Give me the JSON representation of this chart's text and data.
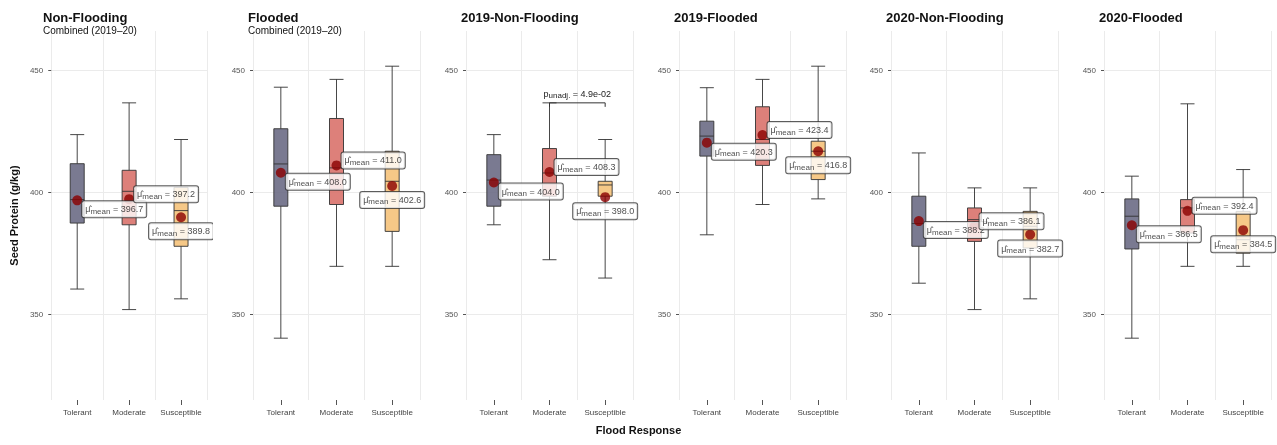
{
  "chart_data": [
    {
      "type": "box",
      "title": "Non-Flooding",
      "subtitle": "Combined (2019–20)",
      "ylabel": "Seed Protein (g/kg)",
      "categories": [
        "Tolerant",
        "Moderate",
        "Susceptible"
      ],
      "colors": [
        "#6b6b85",
        "#d9726b",
        "#f5c27a"
      ],
      "ylim": [
        315,
        466
      ],
      "yticks": [
        350,
        400,
        450
      ],
      "grid": true,
      "boxes": [
        {
          "low": 360.4,
          "q1": 387.4,
          "median": 397,
          "q3": 411.7,
          "high": 423.6,
          "mean": 396.7
        },
        {
          "low": 352,
          "q1": 386.7,
          "median": 400.4,
          "q3": 409,
          "high": 436.6,
          "mean": 397.2
        },
        {
          "low": 356.4,
          "q1": 377.9,
          "median": 392.5,
          "q3": 402,
          "high": 421.6,
          "mean": 389.8
        }
      ],
      "annotations": [
        "μ̂$_{mean}$ = 396.7",
        "μ̂$_{mean}$ = 397.2",
        "μ̂$_{mean}$ = 389.8"
      ]
    },
    {
      "type": "box",
      "title": "Flooded",
      "subtitle": "Combined (2019–20)",
      "categories": [
        "Tolerant",
        "Moderate",
        "Susceptible"
      ],
      "colors": [
        "#6b6b85",
        "#d9726b",
        "#f5c27a"
      ],
      "ylim": [
        315,
        466
      ],
      "yticks": [
        350,
        400,
        450
      ],
      "grid": true,
      "boxes": [
        {
          "low": 340.3,
          "q1": 394.3,
          "median": 411.6,
          "q3": 426,
          "high": 443,
          "mean": 408.0
        },
        {
          "low": 369.7,
          "q1": 395,
          "median": 410,
          "q3": 430.2,
          "high": 446.2,
          "mean": 411.0
        },
        {
          "low": 369.7,
          "q1": 384,
          "median": 404.5,
          "q3": 416.8,
          "high": 451.6,
          "mean": 402.6
        }
      ],
      "annotations": [
        "μ̂$_{mean}$ = 408.0",
        "μ̂$_{mean}$ = 411.0",
        "μ̂$_{mean}$ = 402.6"
      ]
    },
    {
      "type": "box",
      "title": "2019-Non-Flooding",
      "xlabel": "Flood Response",
      "categories": [
        "Tolerant",
        "Moderate",
        "Susceptible"
      ],
      "colors": [
        "#6b6b85",
        "#d9726b",
        "#f5c27a"
      ],
      "ylim": [
        315,
        466
      ],
      "yticks": [
        350,
        400,
        450
      ],
      "grid": true,
      "boxes": [
        {
          "low": 386.7,
          "q1": 394.3,
          "median": 405,
          "q3": 415.4,
          "high": 423.6,
          "mean": 404.0
        },
        {
          "low": 372.4,
          "q1": 398.4,
          "median": 407.9,
          "q3": 417.9,
          "high": 436.6,
          "mean": 408.3
        },
        {
          "low": 364.9,
          "q1": 398.4,
          "median": 403,
          "q3": 404.5,
          "high": 421.6,
          "mean": 398.0
        }
      ],
      "annotations": [
        "μ̂$_{mean}$ = 404.0",
        "μ̂$_{mean}$ = 408.3",
        "μ̂$_{mean}$ = 398.0",
        "p$_{unadj.}$ = 4.9e-02"
      ]
    },
    {
      "type": "box",
      "title": "2019-Flooded",
      "categories": [
        "Tolerant",
        "Moderate",
        "Susceptible"
      ],
      "colors": [
        "#6b6b85",
        "#d9726b",
        "#f5c27a"
      ],
      "ylim": [
        315,
        466
      ],
      "yticks": [
        350,
        400,
        450
      ],
      "grid": true,
      "boxes": [
        {
          "low": 382.6,
          "q1": 414.8,
          "median": 423,
          "q3": 429.1,
          "high": 442.8,
          "mean": 420.3
        },
        {
          "low": 395,
          "q1": 411,
          "median": 421.6,
          "q3": 435,
          "high": 446.2,
          "mean": 423.4
        },
        {
          "low": 397.3,
          "q1": 405.2,
          "median": 416.8,
          "q3": 420.9,
          "high": 451.6,
          "mean": 416.8
        }
      ],
      "annotations": [
        "μ̂$_{mean}$ = 420.3",
        "μ̂$_{mean}$ = 423.4",
        "μ̂$_{mean}$ = 416.8"
      ]
    },
    {
      "type": "box",
      "title": "2020-Non-Flooding",
      "categories": [
        "Tolerant",
        "Moderate",
        "Susceptible"
      ],
      "colors": [
        "#6b6b85",
        "#d9726b",
        "#f5c27a"
      ],
      "ylim": [
        315,
        466
      ],
      "yticks": [
        350,
        400,
        450
      ],
      "grid": true,
      "boxes": [
        {
          "low": 362.8,
          "q1": 377.9,
          "median": 387.2,
          "q3": 398.4,
          "high": 416.1,
          "mean": 388.2
        },
        {
          "low": 352,
          "q1": 379.9,
          "median": 388.8,
          "q3": 393.6,
          "high": 401.8,
          "mean": 386.1
        },
        {
          "low": 356.4,
          "q1": 377.2,
          "median": 386.1,
          "q3": 392.2,
          "high": 401.8,
          "mean": 382.7
        }
      ],
      "annotations": [
        "μ̂$_{mean}$ = 388.2",
        "μ̂$_{mean}$ = 386.1",
        "μ̂$_{mean}$ = 382.7"
      ]
    },
    {
      "type": "box",
      "title": "2020-Flooded",
      "categories": [
        "Tolerant",
        "Moderate",
        "Susceptible"
      ],
      "colors": [
        "#6b6b85",
        "#d9726b",
        "#f5c27a"
      ],
      "ylim": [
        315,
        466
      ],
      "yticks": [
        350,
        400,
        450
      ],
      "grid": true,
      "boxes": [
        {
          "low": 340.3,
          "q1": 376.8,
          "median": 390.2,
          "q3": 397.3,
          "high": 406.6,
          "mean": 386.5
        },
        {
          "low": 369.7,
          "q1": 383.3,
          "median": 393.6,
          "q3": 397,
          "high": 436.2,
          "mean": 392.4
        },
        {
          "low": 369.7,
          "q1": 375.1,
          "median": 380.6,
          "q3": 392.2,
          "high": 409.3,
          "mean": 384.5
        }
      ],
      "annotations": [
        "μ̂$_{mean}$ = 386.5",
        "μ̂$_{mean}$ = 392.4",
        "μ̂$_{mean}$ = 384.5"
      ]
    }
  ]
}
